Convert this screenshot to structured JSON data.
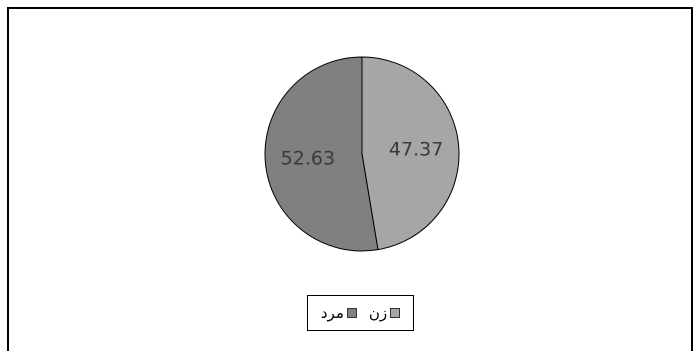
{
  "chart_data": {
    "type": "pie",
    "title": "",
    "categories": [
      "زن",
      "مرد"
    ],
    "values": [
      47.37,
      52.63
    ],
    "data_labels": [
      "47.37",
      "52.63"
    ],
    "colors": [
      "#a6a6a6",
      "#808080"
    ],
    "start_angle_deg": 0,
    "direction": "clockwise",
    "legend_position": "bottom"
  }
}
